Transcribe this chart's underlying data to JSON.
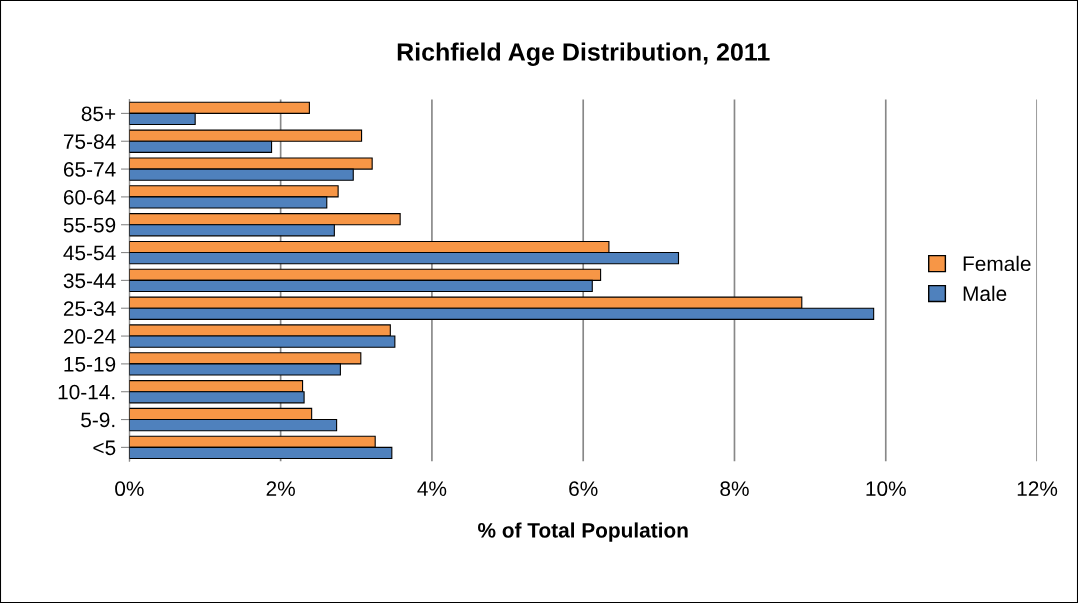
{
  "chart_data": {
    "type": "bar",
    "orientation": "horizontal",
    "title": "Richfield Age Distribution, 2011",
    "xlabel": "% of Total Population",
    "categories": [
      "85+",
      "75-84",
      "65-74",
      "60-64",
      "55-59",
      "45-54",
      "35-44",
      "25-34",
      "20-24",
      "15-19",
      "10-14.",
      "5-9.",
      "<5"
    ],
    "series": [
      {
        "name": "Female",
        "color": "#f79646",
        "values": [
          2.38,
          3.07,
          3.21,
          2.76,
          3.58,
          6.34,
          6.23,
          8.89,
          3.45,
          3.06,
          2.29,
          2.41,
          3.25
        ]
      },
      {
        "name": "Male",
        "color": "#4f81bd",
        "values": [
          0.87,
          1.88,
          2.96,
          2.61,
          2.71,
          7.26,
          6.12,
          9.84,
          3.51,
          2.79,
          2.31,
          2.74,
          3.47
        ]
      }
    ],
    "xlim": [
      0,
      12
    ],
    "xticks": [
      {
        "value": 0,
        "label": "0%"
      },
      {
        "value": 2,
        "label": "2%"
      },
      {
        "value": 4,
        "label": "4%"
      },
      {
        "value": 6,
        "label": "6%"
      },
      {
        "value": 8,
        "label": "8%"
      },
      {
        "value": 10,
        "label": "10%"
      },
      {
        "value": 12,
        "label": "12%"
      }
    ],
    "grid": "x",
    "legend": "right"
  }
}
